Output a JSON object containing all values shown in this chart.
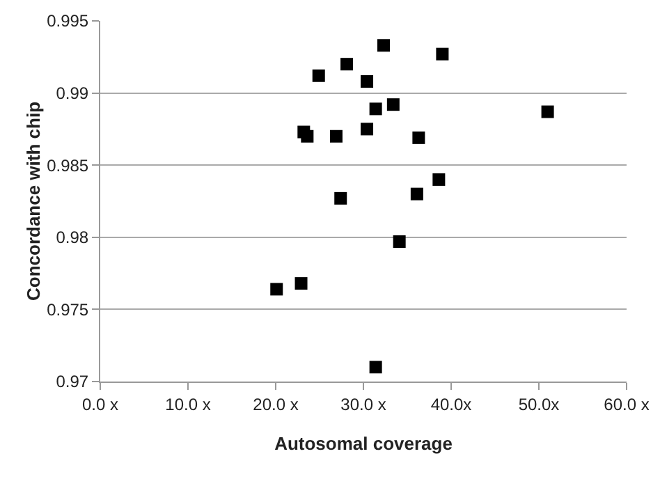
{
  "chart_data": {
    "type": "scatter",
    "xlabel": "Autosomal coverage",
    "ylabel": "Concordance with chip",
    "x": [
      32.3,
      39.0,
      28.1,
      24.9,
      30.4,
      33.4,
      31.4,
      51.0,
      23.2,
      23.6,
      26.9,
      30.4,
      36.3,
      38.6,
      36.1,
      27.4,
      34.1,
      22.9,
      20.1,
      31.4
    ],
    "series": [
      {
        "color": "#000000",
        "values": [
          0.9933,
          0.9927,
          0.992,
          0.9912,
          0.9908,
          0.9892,
          0.9889,
          0.9887,
          0.9873,
          0.987,
          0.987,
          0.9875,
          0.9869,
          0.984,
          0.983,
          0.9827,
          0.9797,
          0.9768,
          0.9764,
          0.971
        ]
      }
    ],
    "xlim": [
      0,
      60
    ],
    "xticks": [
      {
        "value": 0,
        "label": "0.0 x"
      },
      {
        "value": 10,
        "label": "10.0 x"
      },
      {
        "value": 20,
        "label": "20.0 x"
      },
      {
        "value": 30,
        "label": "30.0 x"
      },
      {
        "value": 40,
        "label": "40.0x"
      },
      {
        "value": 50,
        "label": "50.0x"
      },
      {
        "value": 60,
        "label": "60.0 x"
      }
    ],
    "ylim": [
      0.97,
      0.995
    ],
    "yticks": [
      0.97,
      0.975,
      0.98,
      0.985,
      0.99,
      0.995
    ],
    "grid": "y",
    "marker": "square",
    "legend": false
  }
}
